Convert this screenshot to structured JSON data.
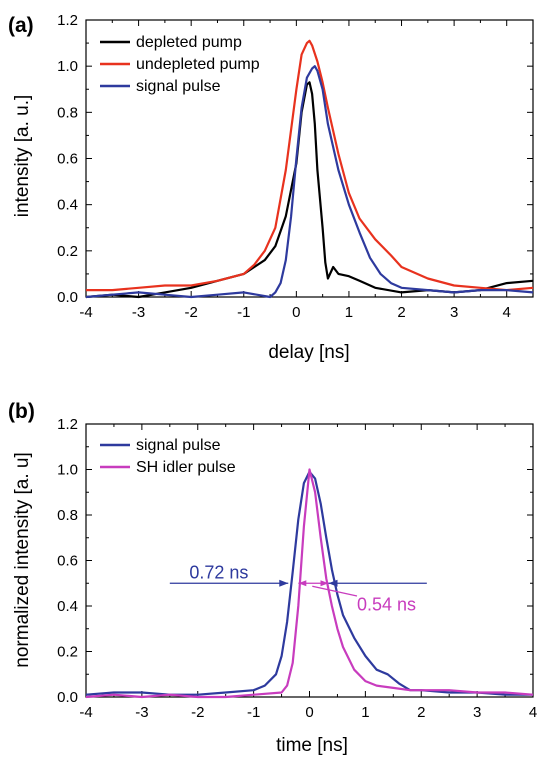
{
  "chart_data": [
    {
      "panel": "(a)",
      "type": "line",
      "xlabel": "delay [ns]",
      "ylabel": "intensity [a. u.]",
      "xlim": [
        -4,
        4.5
      ],
      "ylim": [
        0,
        1.2
      ],
      "xticks": [
        -4,
        -3,
        -2,
        -1,
        0,
        1,
        2,
        3,
        4
      ],
      "xtick_labels": [
        "-4",
        "-3",
        "-2",
        "-1",
        "0",
        "1",
        "2",
        "3",
        "4"
      ],
      "yticks": [
        0,
        0.2,
        0.4,
        0.6,
        0.8,
        1.0,
        1.2
      ],
      "ytick_labels": [
        "0.0",
        "0.2",
        "0.4",
        "0.6",
        "0.8",
        "1.0",
        "1.2"
      ],
      "legend_position": "top-left",
      "series": [
        {
          "name": "depleted pump",
          "color": "#000000",
          "x": [
            -4,
            -3.5,
            -3,
            -2.5,
            -2,
            -1.5,
            -1,
            -0.8,
            -0.6,
            -0.4,
            -0.2,
            0,
            0.1,
            0.2,
            0.25,
            0.3,
            0.35,
            0.4,
            0.5,
            0.55,
            0.6,
            0.7,
            0.8,
            1.0,
            1.2,
            1.5,
            2.0,
            2.5,
            3.0,
            3.5,
            4.0,
            4.5
          ],
          "y": [
            0.0,
            0.01,
            0.0,
            0.02,
            0.04,
            0.07,
            0.1,
            0.13,
            0.16,
            0.22,
            0.35,
            0.58,
            0.8,
            0.92,
            0.93,
            0.88,
            0.75,
            0.55,
            0.3,
            0.15,
            0.08,
            0.13,
            0.1,
            0.09,
            0.07,
            0.04,
            0.02,
            0.03,
            0.02,
            0.03,
            0.06,
            0.07
          ]
        },
        {
          "name": "undepleted pump",
          "color": "#e8321e",
          "x": [
            -4,
            -3.5,
            -3,
            -2.5,
            -2,
            -1.5,
            -1,
            -0.8,
            -0.6,
            -0.4,
            -0.2,
            0,
            0.1,
            0.2,
            0.25,
            0.3,
            0.4,
            0.5,
            0.6,
            0.8,
            1.0,
            1.2,
            1.5,
            1.8,
            2.0,
            2.5,
            3.0,
            3.5,
            4.0,
            4.5
          ],
          "y": [
            0.03,
            0.03,
            0.04,
            0.05,
            0.05,
            0.07,
            0.1,
            0.14,
            0.2,
            0.3,
            0.55,
            0.9,
            1.05,
            1.1,
            1.11,
            1.09,
            1.02,
            0.93,
            0.82,
            0.62,
            0.45,
            0.34,
            0.25,
            0.18,
            0.13,
            0.08,
            0.05,
            0.04,
            0.03,
            0.04
          ]
        },
        {
          "name": "signal pulse",
          "color": "#2e3a9e",
          "x": [
            -4,
            -3.5,
            -3,
            -2.5,
            -2,
            -1.5,
            -1,
            -0.5,
            -0.4,
            -0.3,
            -0.2,
            -0.1,
            0,
            0.1,
            0.2,
            0.3,
            0.35,
            0.4,
            0.5,
            0.6,
            0.8,
            1.0,
            1.2,
            1.4,
            1.6,
            1.8,
            2.0,
            2.5,
            3.0,
            3.5,
            4.0,
            4.5
          ],
          "y": [
            0.0,
            0.01,
            0.02,
            0.01,
            0.0,
            0.01,
            0.02,
            0.0,
            0.02,
            0.06,
            0.16,
            0.35,
            0.6,
            0.82,
            0.95,
            0.99,
            1.0,
            0.98,
            0.9,
            0.75,
            0.55,
            0.4,
            0.28,
            0.17,
            0.1,
            0.06,
            0.04,
            0.03,
            0.02,
            0.03,
            0.03,
            0.02
          ]
        }
      ]
    },
    {
      "panel": "(b)",
      "type": "line",
      "xlabel": "time [ns]",
      "ylabel": "normalized intensity [a. u]",
      "xlim": [
        -4,
        4
      ],
      "ylim": [
        0,
        1.2
      ],
      "xticks": [
        -4,
        -3,
        -2,
        -1,
        0,
        1,
        2,
        3,
        4
      ],
      "xtick_labels": [
        "-4",
        "-3",
        "-2",
        "-1",
        "0",
        "1",
        "2",
        "3",
        "4"
      ],
      "yticks": [
        0,
        0.2,
        0.4,
        0.6,
        0.8,
        1.0,
        1.2
      ],
      "ytick_labels": [
        "0.0",
        "0.2",
        "0.4",
        "0.6",
        "0.8",
        "1.0",
        "1.2"
      ],
      "legend_position": "top-left",
      "series": [
        {
          "name": "signal pulse",
          "color": "#2e3a9e",
          "x": [
            -4,
            -3.5,
            -3,
            -2.5,
            -2,
            -1.5,
            -1,
            -0.8,
            -0.6,
            -0.5,
            -0.4,
            -0.3,
            -0.2,
            -0.1,
            0,
            0.1,
            0.2,
            0.3,
            0.4,
            0.5,
            0.6,
            0.8,
            1.0,
            1.2,
            1.4,
            1.6,
            1.8,
            2.0,
            2.5,
            3.0,
            3.5,
            4.0
          ],
          "y": [
            0.01,
            0.02,
            0.02,
            0.01,
            0.01,
            0.02,
            0.03,
            0.05,
            0.1,
            0.18,
            0.33,
            0.55,
            0.78,
            0.94,
            0.99,
            0.96,
            0.85,
            0.7,
            0.56,
            0.45,
            0.36,
            0.26,
            0.18,
            0.12,
            0.1,
            0.06,
            0.03,
            0.03,
            0.02,
            0.02,
            0.01,
            0.01
          ]
        },
        {
          "name": "SH idler pulse",
          "color": "#c83cbe",
          "x": [
            -4,
            -3.5,
            -3,
            -2.5,
            -2,
            -1.5,
            -1,
            -0.5,
            -0.4,
            -0.3,
            -0.2,
            -0.1,
            0,
            0.1,
            0.2,
            0.3,
            0.4,
            0.5,
            0.6,
            0.8,
            1.0,
            1.2,
            1.5,
            1.8,
            2.0,
            2.5,
            3.0,
            3.5,
            4.0
          ],
          "y": [
            0.0,
            0.01,
            0.0,
            0.01,
            0.0,
            0.0,
            0.01,
            0.02,
            0.05,
            0.15,
            0.4,
            0.75,
            1.0,
            0.9,
            0.7,
            0.52,
            0.4,
            0.3,
            0.22,
            0.12,
            0.07,
            0.05,
            0.04,
            0.03,
            0.03,
            0.03,
            0.02,
            0.02,
            0.01
          ]
        }
      ],
      "annotations": [
        {
          "text": "0.72 ns",
          "color": "#2e3a9e",
          "fwhm_from": -0.38,
          "fwhm_to": 0.34,
          "level": 0.5
        },
        {
          "text": "0.54 ns",
          "color": "#c83cbe",
          "fwhm_from": -0.2,
          "fwhm_to": 0.34,
          "level": 0.5
        }
      ]
    }
  ]
}
